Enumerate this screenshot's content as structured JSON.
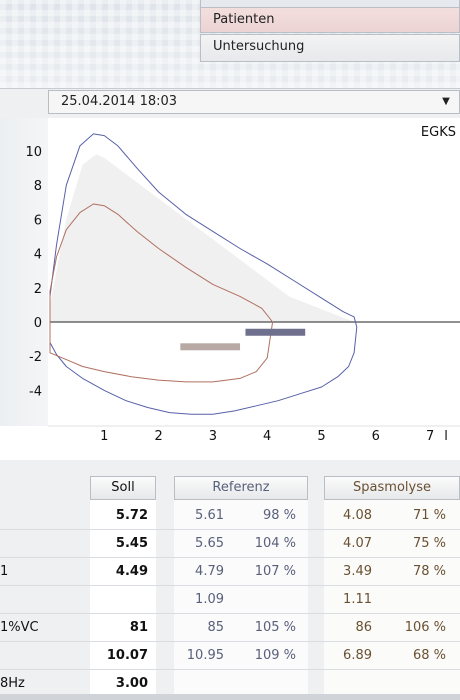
{
  "menu": {
    "items": [
      "Patienten",
      "Untersuchung"
    ]
  },
  "measurement": {
    "datetime": "25.04.2014   18:03"
  },
  "chart_data": {
    "type": "line",
    "title": "EGKS",
    "xlabel": "",
    "ylabel": "",
    "x_unit_label": "l",
    "xlim": [
      0,
      7.4
    ],
    "ylim": [
      -5.6,
      11.6
    ],
    "x_ticks": [
      1,
      2,
      3,
      4,
      5,
      6,
      7
    ],
    "y_ticks": [
      10,
      8,
      6,
      4,
      2,
      0,
      -2,
      -4
    ],
    "grid": false,
    "series": [
      {
        "color": "#5860a8",
        "x": [
          0.0,
          0.12,
          0.3,
          0.55,
          0.8,
          1.0,
          1.25,
          1.6,
          2.0,
          2.5,
          3.0,
          3.5,
          4.0,
          4.5,
          5.0,
          5.4,
          5.6,
          5.65,
          5.6,
          5.5,
          5.3,
          5.0,
          4.6,
          4.2,
          3.8,
          3.4,
          3.0,
          2.6,
          2.2,
          1.8,
          1.4,
          1.0,
          0.6,
          0.3,
          0.12,
          0.0
        ],
        "y": [
          1.5,
          4.5,
          8.0,
          10.3,
          11.0,
          10.9,
          10.3,
          9.0,
          7.6,
          6.3,
          5.3,
          4.3,
          3.4,
          2.4,
          1.4,
          0.6,
          0.3,
          -0.3,
          -1.8,
          -2.6,
          -3.2,
          -3.8,
          -4.2,
          -4.6,
          -4.9,
          -5.2,
          -5.4,
          -5.4,
          -5.3,
          -5.0,
          -4.6,
          -4.0,
          -3.3,
          -2.6,
          -1.9,
          -1.2
        ]
      },
      {
        "color": "#b07060",
        "x": [
          0.0,
          0.12,
          0.3,
          0.55,
          0.8,
          1.0,
          1.25,
          1.6,
          2.0,
          2.5,
          3.0,
          3.5,
          3.9,
          4.1,
          4.0,
          3.8,
          3.5,
          3.0,
          2.5,
          2.0,
          1.5,
          1.0,
          0.6,
          0.3,
          0.0
        ],
        "y": [
          1.8,
          3.8,
          5.4,
          6.4,
          6.9,
          6.8,
          6.3,
          5.3,
          4.3,
          3.2,
          2.2,
          1.5,
          0.8,
          0.0,
          -2.1,
          -2.9,
          -3.3,
          -3.5,
          -3.5,
          -3.4,
          -3.2,
          -2.9,
          -2.6,
          -2.2,
          -1.8
        ]
      }
    ],
    "reference_fill": {
      "color": "#f0f0f0",
      "x": [
        0.0,
        0.3,
        0.6,
        0.85,
        1.0,
        4.4,
        5.6,
        5.6,
        0.0
      ],
      "y": [
        1.0,
        6.0,
        9.2,
        9.8,
        9.6,
        1.5,
        0.0,
        0.0,
        0.0
      ]
    },
    "bars": [
      {
        "color": "#b8a9a4",
        "x_start": 2.4,
        "x_end": 3.5,
        "y": -1.45
      },
      {
        "color": "#6f708d",
        "x_start": 3.6,
        "x_end": 4.7,
        "y": -0.6
      }
    ]
  },
  "table": {
    "headers": {
      "soll": "Soll",
      "referenz": "Referenz",
      "spasmolyse": "Spasmolyse"
    },
    "rows": [
      {
        "label": "",
        "soll": "5.72",
        "ref_val": "5.61",
        "ref_pct": "98 %",
        "spa_val": "4.08",
        "spa_pct": "71 %"
      },
      {
        "label": "",
        "soll": "5.45",
        "ref_val": "5.65",
        "ref_pct": "104 %",
        "spa_val": "4.07",
        "spa_pct": "75 %"
      },
      {
        "label": "1",
        "soll": "4.49",
        "ref_val": "4.79",
        "ref_pct": "107 %",
        "spa_val": "3.49",
        "spa_pct": "78 %"
      },
      {
        "label": "",
        "soll": "",
        "ref_val": "1.09",
        "ref_pct": "",
        "spa_val": "1.11",
        "spa_pct": ""
      },
      {
        "label": "1%VC",
        "soll": "81",
        "ref_val": "85",
        "ref_pct": "105 %",
        "spa_val": "86",
        "spa_pct": "106 %"
      },
      {
        "label": "",
        "soll": "10.07",
        "ref_val": "10.95",
        "ref_pct": "109 %",
        "spa_val": "6.89",
        "spa_pct": "68 %"
      },
      {
        "label": "8Hz",
        "soll": "3.00",
        "ref_val": "",
        "ref_pct": "",
        "spa_val": "",
        "spa_pct": ""
      }
    ]
  }
}
